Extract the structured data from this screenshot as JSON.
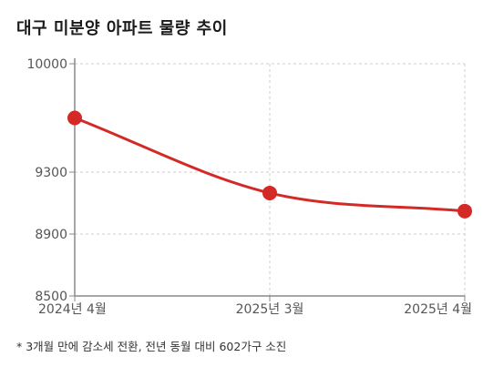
{
  "title": "대구 미분양 아파트 물량 추이",
  "footnote": "* 3개월 만에 감소세 전환, 전년 동월 대비 602가구 소진",
  "colors": {
    "line": "#d42a27",
    "grid": "#cccccc",
    "axis": "#888888",
    "tick_text": "#555555"
  },
  "chart_data": {
    "type": "line",
    "title": "대구 미분양 아파트 물량 추이",
    "categories": [
      "2024년 4월",
      "2025년 3월",
      "2025년 4월"
    ],
    "values": [
      9650,
      9165,
      9048
    ],
    "ylim": [
      8500,
      10000
    ],
    "yticks": [
      8500,
      8900,
      9300,
      10000
    ],
    "grid": true,
    "smooth": true,
    "markers": true
  }
}
